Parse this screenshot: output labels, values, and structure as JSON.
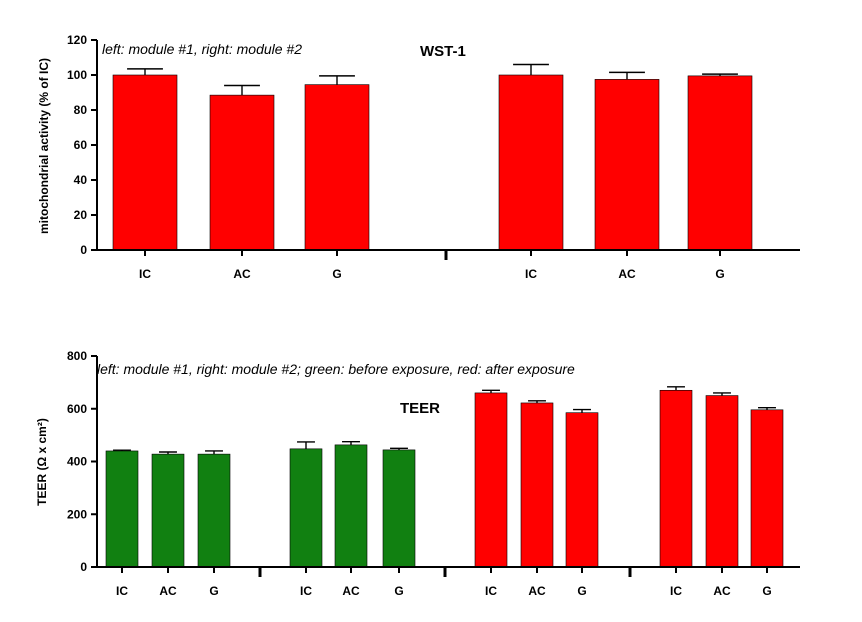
{
  "chart_data": [
    {
      "type": "bar",
      "title": "WST-1",
      "annotation": "left: module #1, right: module #2",
      "ylabel": "mitochondrial activity (% of IC)",
      "ylim": [
        0,
        120
      ],
      "yticks": [
        0,
        20,
        40,
        60,
        80,
        100,
        120
      ],
      "grid": false,
      "groups": [
        {
          "categories": [
            "IC",
            "AC",
            "G"
          ],
          "values": [
            100,
            88.5,
            94.5
          ],
          "errors": [
            3.5,
            5.5,
            5
          ],
          "color": "#ff0000"
        },
        {
          "categories": [
            "IC",
            "AC",
            "G"
          ],
          "values": [
            100,
            97.5,
            99.5
          ],
          "errors": [
            6,
            4,
            1
          ],
          "color": "#ff0000"
        }
      ]
    },
    {
      "type": "bar",
      "title": "TEER",
      "annotation": "left: module #1, right: module #2; green: before exposure, red: after exposure",
      "ylabel": "TEER (Ω x cm²)",
      "ylim": [
        0,
        800
      ],
      "yticks": [
        0,
        200,
        400,
        600,
        800
      ],
      "grid": false,
      "groups": [
        {
          "categories": [
            "IC",
            "AC",
            "G"
          ],
          "values": [
            440,
            428,
            428
          ],
          "errors": [
            3,
            8,
            12
          ],
          "color": "#118011"
        },
        {
          "categories": [
            "IC",
            "AC",
            "G"
          ],
          "values": [
            448,
            463,
            444
          ],
          "errors": [
            26,
            12,
            6
          ],
          "color": "#118011"
        },
        {
          "categories": [
            "IC",
            "AC",
            "G"
          ],
          "values": [
            660,
            622,
            585
          ],
          "errors": [
            10,
            8,
            12
          ],
          "color": "#ff0000"
        },
        {
          "categories": [
            "IC",
            "AC",
            "G"
          ],
          "values": [
            670,
            650,
            596
          ],
          "errors": [
            13,
            10,
            8
          ],
          "color": "#ff0000"
        }
      ]
    }
  ]
}
